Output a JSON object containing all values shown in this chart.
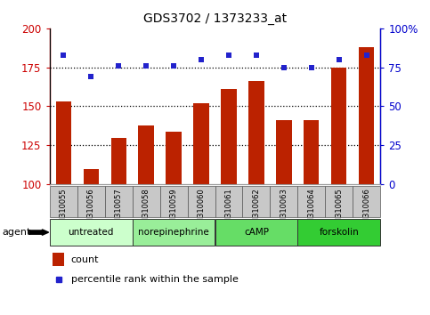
{
  "title": "GDS3702 / 1373233_at",
  "samples": [
    "GSM310055",
    "GSM310056",
    "GSM310057",
    "GSM310058",
    "GSM310059",
    "GSM310060",
    "GSM310061",
    "GSM310062",
    "GSM310063",
    "GSM310064",
    "GSM310065",
    "GSM310066"
  ],
  "count_values": [
    153,
    110,
    130,
    138,
    134,
    152,
    161,
    166,
    141,
    141,
    175,
    188
  ],
  "percentile_values": [
    83,
    69,
    76,
    76,
    76,
    80,
    83,
    83,
    75,
    75,
    80,
    83
  ],
  "ylim_left": [
    100,
    200
  ],
  "ylim_right": [
    0,
    100
  ],
  "yticks_left": [
    100,
    125,
    150,
    175,
    200
  ],
  "yticks_right": [
    0,
    25,
    50,
    75,
    100
  ],
  "bar_color": "#BB2200",
  "dot_color": "#2222CC",
  "left_axis_color": "#CC0000",
  "right_axis_color": "#0000CC",
  "agent_groups": [
    {
      "label": "untreated",
      "start": 0,
      "end": 3,
      "color": "#CCFFCC"
    },
    {
      "label": "norepinephrine",
      "start": 3,
      "end": 6,
      "color": "#99EE99"
    },
    {
      "label": "cAMP",
      "start": 6,
      "end": 9,
      "color": "#66DD66"
    },
    {
      "label": "forskolin",
      "start": 9,
      "end": 12,
      "color": "#33CC33"
    }
  ],
  "legend_count_color": "#BB2200",
  "legend_pct_color": "#2222CC",
  "agent_label": "agent",
  "legend_count_text": "count",
  "legend_pct_text": "percentile rank within the sample",
  "gridline_values": [
    125,
    150,
    175
  ],
  "tick_box_color": "#C8C8C8"
}
